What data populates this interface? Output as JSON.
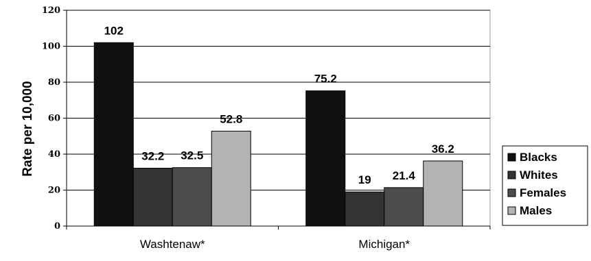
{
  "chart_data": {
    "type": "bar",
    "ylabel": "Rate per 10,000",
    "xlabel": "",
    "ylim": [
      0,
      120
    ],
    "yticks": [
      0,
      20,
      40,
      60,
      80,
      100,
      120
    ],
    "grid": true,
    "legend_position": "right",
    "categories": [
      "Washtenaw*",
      "Michigan*"
    ],
    "series": [
      {
        "name": "Blacks",
        "values": [
          102,
          75.2
        ],
        "labels": [
          "102",
          "75.2"
        ],
        "color": "#111111"
      },
      {
        "name": "Whites",
        "values": [
          32.2,
          19
        ],
        "labels": [
          "32.2",
          "19"
        ],
        "color": "#333333"
      },
      {
        "name": "Females",
        "values": [
          32.5,
          21.4
        ],
        "labels": [
          "32.5",
          "21.4"
        ],
        "color": "#4d4d4d"
      },
      {
        "name": "Males",
        "values": [
          52.8,
          36.2
        ],
        "labels": [
          "52.8",
          "36.2"
        ],
        "color": "#b3b3b3"
      }
    ]
  }
}
